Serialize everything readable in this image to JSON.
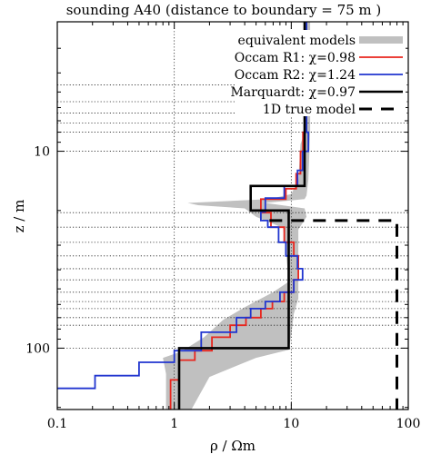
{
  "chart_data": {
    "type": "line",
    "title": "sounding A40 (distance to boundary = 75 m )",
    "xlabel": "ρ / Ωm",
    "ylabel": "z / m",
    "x_scale": "log",
    "y_scale": "log",
    "y_inverted": true,
    "xlim": [
      0.1,
      100
    ],
    "ylim": [
      2.2,
      205
    ],
    "x_ticks": [
      0.1,
      1,
      10,
      100
    ],
    "x_tick_labels": [
      "0.1",
      "1",
      "10",
      "100"
    ],
    "y_ticks": [
      10,
      100
    ],
    "y_tick_labels": [
      "10",
      "100"
    ],
    "legend_position": "top-right",
    "layer_boundary_gridlines_depth": [
      4.6,
      5.6,
      6.4,
      7.2,
      8.0,
      20.5,
      24.3,
      29.0,
      34.0,
      39.5,
      45.0,
      52.0,
      58.0,
      63.0,
      70.0,
      76.5
    ],
    "equivalent_models_band": {
      "name": "equivalent models",
      "color": "#c0c0c0",
      "left": [
        [
          13,
          2.2
        ],
        [
          13,
          8.0
        ],
        [
          12,
          9.2
        ],
        [
          11.5,
          14.0
        ],
        [
          10,
          16.5
        ],
        [
          6.5,
          17.5
        ],
        [
          1.3,
          18.3
        ],
        [
          1.6,
          18.8
        ],
        [
          4,
          19.5
        ],
        [
          5,
          21.5
        ],
        [
          8.5,
          24.5
        ],
        [
          9,
          32
        ],
        [
          9.5,
          46
        ],
        [
          7,
          52
        ],
        [
          4,
          62
        ],
        [
          2.6,
          72
        ],
        [
          1.8,
          88
        ],
        [
          1.15,
          104
        ],
        [
          0.8,
          112
        ],
        [
          0.85,
          135
        ],
        [
          0.85,
          205
        ]
      ],
      "right": [
        [
          14.5,
          2.2
        ],
        [
          14.5,
          8.0
        ],
        [
          14,
          14.0
        ],
        [
          13.5,
          16.8
        ],
        [
          13,
          17.5
        ],
        [
          6,
          18.3
        ],
        [
          13,
          19.5
        ],
        [
          13.5,
          21.5
        ],
        [
          11.5,
          25
        ],
        [
          11.5,
          32
        ],
        [
          11.5,
          46
        ],
        [
          11.5,
          56
        ],
        [
          10.5,
          67
        ],
        [
          10,
          86
        ],
        [
          9.5,
          102
        ],
        [
          5,
          112
        ],
        [
          2,
          140
        ],
        [
          1.4,
          205
        ]
      ]
    },
    "series": [
      {
        "name": "Occam R1: χ=0.98",
        "color": "#e8261e",
        "points": [
          [
            13,
            2.2
          ],
          [
            13,
            8.0
          ],
          [
            12.6,
            8.0
          ],
          [
            12.6,
            10.0
          ],
          [
            12,
            10.0
          ],
          [
            12,
            13.0
          ],
          [
            11,
            13.0
          ],
          [
            11,
            15.5
          ],
          [
            9,
            15.5
          ],
          [
            9,
            17.5
          ],
          [
            5.5,
            17.5
          ],
          [
            5.5,
            20.5
          ],
          [
            6.7,
            20.5
          ],
          [
            6.7,
            24.3
          ],
          [
            8.7,
            24.3
          ],
          [
            8.7,
            29.0
          ],
          [
            10.5,
            29.0
          ],
          [
            10.5,
            34.0
          ],
          [
            11.5,
            34.0
          ],
          [
            11.5,
            39.5
          ],
          [
            11.5,
            45.0
          ],
          [
            10.5,
            45.0
          ],
          [
            10.5,
            52.0
          ],
          [
            8.7,
            52.0
          ],
          [
            8.7,
            58.0
          ],
          [
            6.9,
            58.0
          ],
          [
            6.9,
            63.0
          ],
          [
            5.5,
            63.0
          ],
          [
            5.5,
            70.0
          ],
          [
            4.1,
            70.0
          ],
          [
            4.1,
            76.5
          ],
          [
            3.0,
            76.5
          ],
          [
            3.0,
            88
          ],
          [
            2.1,
            88
          ],
          [
            2.1,
            103
          ],
          [
            1.5,
            103
          ],
          [
            1.5,
            115
          ],
          [
            1.1,
            115
          ],
          [
            1.1,
            145
          ],
          [
            0.93,
            145
          ],
          [
            0.93,
            205
          ]
        ]
      },
      {
        "name": "Occam R2: χ=1.24",
        "color": "#2035cf",
        "points": [
          [
            13.5,
            2.2
          ],
          [
            13.5,
            8.0
          ],
          [
            14,
            8.0
          ],
          [
            14,
            10.0
          ],
          [
            12.5,
            10.0
          ],
          [
            12.5,
            12.5
          ],
          [
            11.3,
            12.5
          ],
          [
            11.3,
            15.0
          ],
          [
            8.7,
            15.0
          ],
          [
            8.7,
            17.3
          ],
          [
            6.0,
            17.3
          ],
          [
            6.0,
            20.3
          ],
          [
            5.5,
            20.3
          ],
          [
            5.5,
            22.5
          ],
          [
            6.3,
            22.5
          ],
          [
            6.3,
            24.3
          ],
          [
            7.8,
            24.3
          ],
          [
            7.8,
            29.0
          ],
          [
            9.0,
            29.0
          ],
          [
            9.0,
            34.0
          ],
          [
            11.3,
            34.0
          ],
          [
            11.3,
            39.5
          ],
          [
            12.5,
            39.5
          ],
          [
            12.5,
            45.0
          ],
          [
            10.5,
            45.0
          ],
          [
            10.5,
            52.0
          ],
          [
            8.0,
            52.0
          ],
          [
            8.0,
            58.0
          ],
          [
            6.0,
            58.0
          ],
          [
            6.0,
            63.0
          ],
          [
            4.5,
            63.0
          ],
          [
            4.5,
            70.0
          ],
          [
            3.4,
            70.0
          ],
          [
            3.4,
            83
          ],
          [
            1.7,
            83
          ],
          [
            1.7,
            103
          ],
          [
            1.0,
            103
          ],
          [
            1.0,
            118
          ],
          [
            0.5,
            118
          ],
          [
            0.5,
            138
          ],
          [
            0.21,
            138
          ],
          [
            0.21,
            160
          ],
          [
            0.1,
            160
          ]
        ]
      },
      {
        "name": "Marquardt: χ=0.97",
        "color": "#000000",
        "points": [
          [
            13,
            2.2
          ],
          [
            13,
            15.0
          ],
          [
            4.5,
            15.0
          ],
          [
            4.5,
            20.0
          ],
          [
            9.5,
            20.0
          ],
          [
            9.5,
            100
          ],
          [
            1.1,
            100
          ],
          [
            1.1,
            205
          ]
        ]
      },
      {
        "name": "1D true model",
        "color": "#000000",
        "dashed": true,
        "points": [
          [
            6.5,
            22.5
          ],
          [
            80,
            22.5
          ],
          [
            80,
            205
          ]
        ]
      }
    ]
  }
}
